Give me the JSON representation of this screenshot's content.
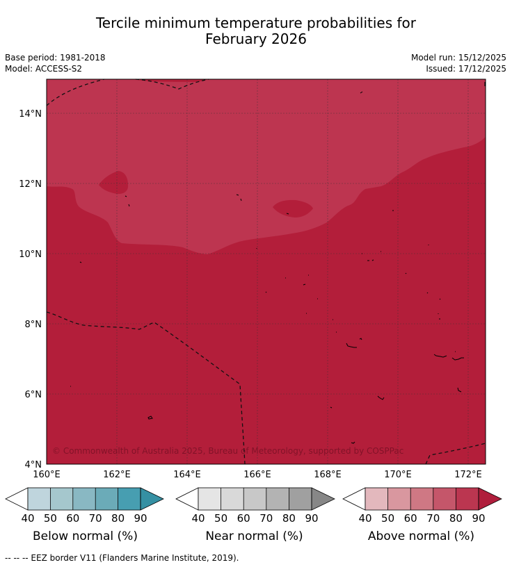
{
  "title_line1": "Tercile minimum temperature probabilities for",
  "title_line2": "February 2026",
  "meta": {
    "base_period": "Base period: 1981-2018",
    "model": "Model: ACCESS-S2",
    "model_run": "Model run: 15/12/2025",
    "issued": "Issued: 17/12/2025"
  },
  "axes": {
    "lon_ticks": [
      "160°E",
      "162°E",
      "164°E",
      "166°E",
      "168°E",
      "170°E",
      "172°E"
    ],
    "lat_ticks": [
      "4°N",
      "6°N",
      "8°N",
      "10°N",
      "12°N",
      "14°N"
    ]
  },
  "copyright": "© Commonwealth of Australia 2025, Bureau of Meteorology, supported by COSPPac",
  "colors": {
    "above_80_90": "#b51f3b",
    "above_90_plus": "#b31e3a",
    "below": [
      "#bfd5dd",
      "#a5c7cd",
      "#89b8c3",
      "#6babb8",
      "#479eb1",
      "#3590a3"
    ],
    "near": [
      "#e5e5e5",
      "#d9d9d9",
      "#c8c8c8",
      "#b3b3b3",
      "#a0a0a0",
      "#878787"
    ],
    "above": [
      "#e3b8bd",
      "#d9979f",
      "#cf7884",
      "#c5566a",
      "#bb3650",
      "#b01e3c"
    ]
  },
  "colorbars": [
    {
      "label": "Below normal (%)",
      "ticks": [
        "40",
        "50",
        "60",
        "70",
        "80",
        "90"
      ]
    },
    {
      "label": "Near normal (%)",
      "ticks": [
        "40",
        "50",
        "60",
        "70",
        "80",
        "90"
      ]
    },
    {
      "label": "Above normal (%)",
      "ticks": [
        "40",
        "50",
        "60",
        "70",
        "80",
        "90"
      ]
    }
  ],
  "footnote": "--  --  -- EEZ border V11 (Flanders Marine Institute, 2019)."
}
